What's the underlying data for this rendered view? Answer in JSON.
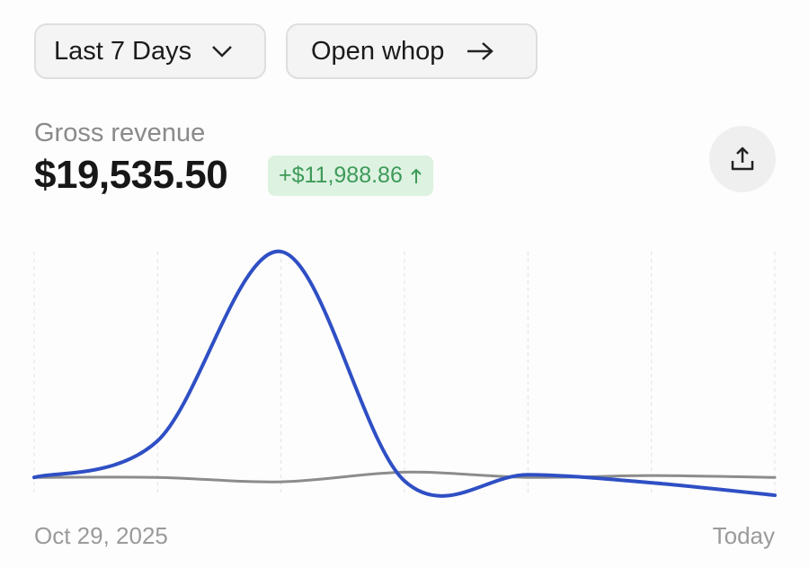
{
  "controls": {
    "range": "Last 7 Days",
    "open": "Open whop"
  },
  "metric": {
    "label": "Gross revenue",
    "value": "$19,535.50",
    "change": "+$11,988.86"
  },
  "chart_data": {
    "type": "line",
    "categories": [
      "Oct 29, 2025",
      null,
      null,
      null,
      null,
      null,
      "Today"
    ],
    "series": [
      {
        "color": "#8c8c8c",
        "values": [
          1205,
          1205,
          1000,
          1450,
          1205,
          1290,
          1205
        ]
      },
      {
        "color": "#2f4fc4",
        "values": [
          1205,
          2909,
          11720,
          1039,
          1330,
          956,
          374
        ]
      }
    ],
    "ylim": [
      0,
      11800
    ]
  }
}
